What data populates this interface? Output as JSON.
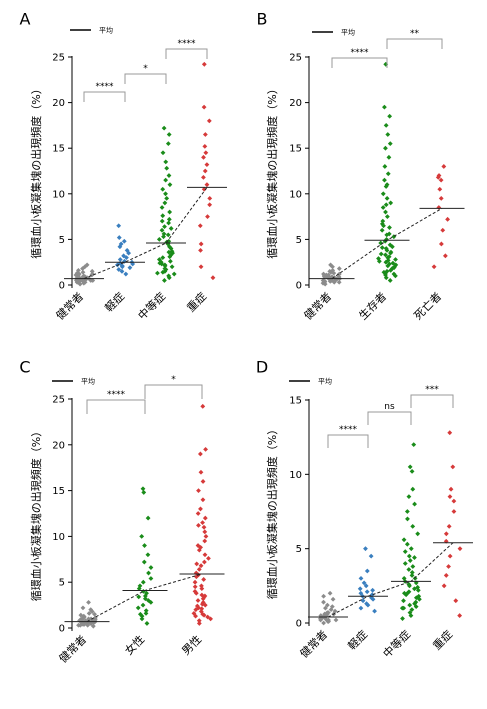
{
  "legend_label": "平均",
  "colors": {
    "健常者": "#8c8c8c",
    "軽症": "#3a7fbf",
    "中等症": "#1a8c1a",
    "重症": "#d63a3a",
    "生存者": "#1a8c1a",
    "死亡者": "#d63a3a",
    "女性": "#1a8c1a",
    "男性": "#d63a3a"
  },
  "chart_data": [
    {
      "panel": "A",
      "type": "scatter",
      "ylabel": "循環血小板凝集塊の出現頻度（%）",
      "ylim": [
        0,
        25
      ],
      "yticks": [
        0,
        5,
        10,
        15,
        20,
        25
      ],
      "categories": [
        "健常者",
        "軽症",
        "中等症",
        "重症"
      ],
      "means": [
        0.7,
        2.5,
        4.6,
        10.7
      ],
      "significance": [
        {
          "from": 0,
          "to": 1,
          "label": "****"
        },
        {
          "from": 1,
          "to": 2,
          "label": "*"
        },
        {
          "from": 2,
          "to": 3,
          "label": "****"
        }
      ],
      "series": [
        {
          "category": "健常者",
          "values": [
            0.2,
            0.3,
            0.3,
            0.4,
            0.4,
            0.5,
            0.5,
            0.5,
            0.6,
            0.6,
            0.6,
            0.7,
            0.7,
            0.7,
            0.8,
            0.8,
            0.8,
            0.9,
            0.9,
            1.0,
            1.0,
            1.1,
            1.1,
            1.2,
            1.3,
            1.4,
            1.5,
            1.6,
            1.8,
            2.0,
            2.2,
            0.1,
            0.3,
            0.5,
            0.9,
            1.2
          ]
        },
        {
          "category": "軽症",
          "values": [
            1.2,
            1.5,
            1.7,
            1.9,
            2.0,
            2.1,
            2.2,
            2.3,
            2.4,
            2.5,
            2.6,
            2.8,
            3.0,
            3.2,
            3.5,
            3.8,
            4.2,
            4.5,
            4.8,
            5.2,
            6.5
          ]
        },
        {
          "category": "中等症",
          "values": [
            0.5,
            0.8,
            1.0,
            1.2,
            1.4,
            1.5,
            1.7,
            1.8,
            2.0,
            2.1,
            2.2,
            2.3,
            2.5,
            2.6,
            2.8,
            3.0,
            3.1,
            3.3,
            3.5,
            3.7,
            4.0,
            4.2,
            4.5,
            4.7,
            5.0,
            5.3,
            5.6,
            6.0,
            6.4,
            6.8,
            7.2,
            7.6,
            8.0,
            8.5,
            9.0,
            9.5,
            10.0,
            10.5,
            11.0,
            11.5,
            12.0,
            12.8,
            13.5,
            14.5,
            15.5,
            16.5,
            17.2,
            1.3,
            2.4,
            3.6,
            4.8,
            5.5,
            6.2,
            7.0
          ]
        },
        {
          "category": "重症",
          "values": [
            0.8,
            2.0,
            3.8,
            4.5,
            6.5,
            7.5,
            8.8,
            9.5,
            10.5,
            11.0,
            11.8,
            12.5,
            13.2,
            14.0,
            14.5,
            15.2,
            16.5,
            18.0,
            19.5,
            24.2
          ]
        }
      ]
    },
    {
      "panel": "B",
      "type": "scatter",
      "ylabel": "循環血小板凝集塊の出現頻度（%）",
      "ylim": [
        0,
        25
      ],
      "yticks": [
        0,
        5,
        10,
        15,
        20,
        25
      ],
      "categories": [
        "健常者",
        "生存者",
        "死亡者"
      ],
      "means": [
        0.7,
        4.9,
        8.4
      ],
      "significance": [
        {
          "from": 0,
          "to": 1,
          "label": "****"
        },
        {
          "from": 1,
          "to": 2,
          "label": "**"
        }
      ],
      "series": [
        {
          "category": "健常者",
          "values": [
            0.2,
            0.3,
            0.3,
            0.4,
            0.4,
            0.5,
            0.5,
            0.5,
            0.6,
            0.6,
            0.6,
            0.7,
            0.7,
            0.7,
            0.8,
            0.8,
            0.8,
            0.9,
            0.9,
            1.0,
            1.0,
            1.1,
            1.1,
            1.2,
            1.3,
            1.4,
            1.5,
            1.6,
            1.8,
            2.0,
            2.2,
            0.1,
            0.3,
            0.5,
            0.9,
            1.2
          ]
        },
        {
          "category": "生存者",
          "values": [
            0.5,
            0.8,
            1.0,
            1.2,
            1.3,
            1.5,
            1.6,
            1.8,
            2.0,
            2.1,
            2.2,
            2.3,
            2.4,
            2.5,
            2.6,
            2.8,
            3.0,
            3.1,
            3.3,
            3.5,
            3.6,
            3.8,
            4.0,
            4.2,
            4.4,
            4.6,
            4.8,
            5.0,
            5.3,
            5.6,
            6.0,
            6.3,
            6.7,
            7.0,
            7.5,
            8.0,
            8.5,
            9.0,
            9.5,
            10.0,
            10.8,
            11.5,
            12.2,
            13.0,
            14.0,
            15.0,
            15.5,
            16.5,
            17.5,
            18.5,
            19.5,
            24.2,
            1.1,
            1.9,
            2.7,
            3.4,
            4.1,
            5.5,
            6.5,
            8.8,
            11.0,
            1.4,
            2.9
          ]
        },
        {
          "category": "死亡者",
          "values": [
            2.0,
            3.2,
            4.5,
            6.0,
            7.2,
            8.5,
            9.5,
            10.5,
            11.5,
            11.8,
            12.0,
            13.0
          ]
        }
      ]
    },
    {
      "panel": "C",
      "type": "scatter",
      "ylabel": "循環血小板凝集塊の出現頻度（%）",
      "ylim": [
        0,
        25
      ],
      "yticks": [
        0,
        5,
        10,
        15,
        20,
        25
      ],
      "categories": [
        "健常者",
        "女性",
        "男性"
      ],
      "means": [
        0.7,
        4.1,
        5.9
      ],
      "significance": [
        {
          "from": 0,
          "to": 1,
          "label": "****"
        },
        {
          "from": 1,
          "to": 2,
          "label": "*"
        }
      ],
      "series": [
        {
          "category": "健常者",
          "values": [
            0.2,
            0.3,
            0.3,
            0.4,
            0.4,
            0.5,
            0.5,
            0.5,
            0.6,
            0.6,
            0.6,
            0.7,
            0.7,
            0.7,
            0.8,
            0.8,
            0.8,
            0.9,
            0.9,
            1.0,
            1.0,
            1.1,
            1.1,
            1.2,
            1.3,
            1.4,
            1.5,
            1.6,
            1.8,
            2.0,
            2.2,
            2.8,
            0.3,
            0.5,
            0.9
          ]
        },
        {
          "category": "女性",
          "values": [
            0.5,
            1.0,
            1.3,
            1.6,
            1.9,
            2.2,
            2.5,
            2.8,
            3.0,
            3.2,
            3.5,
            3.8,
            4.0,
            4.3,
            4.6,
            5.0,
            5.4,
            6.0,
            6.6,
            7.2,
            8.0,
            9.0,
            10.0,
            12.0,
            14.8,
            15.2,
            1.5,
            3.4
          ]
        },
        {
          "category": "男性",
          "values": [
            0.5,
            0.8,
            1.0,
            1.2,
            1.4,
            1.5,
            1.6,
            1.8,
            2.0,
            2.1,
            2.2,
            2.4,
            2.6,
            2.8,
            3.0,
            3.2,
            3.4,
            3.6,
            3.8,
            4.0,
            4.3,
            4.6,
            5.0,
            5.3,
            5.6,
            6.0,
            6.4,
            6.8,
            7.2,
            7.6,
            8.0,
            8.5,
            9.0,
            9.5,
            10.0,
            10.5,
            11.0,
            11.5,
            12.0,
            12.5,
            13.0,
            14.0,
            15.0,
            16.0,
            17.0,
            19.0,
            19.5,
            24.2,
            1.3,
            2.5,
            3.5,
            4.5,
            5.8,
            7.0,
            8.8,
            11.2
          ]
        }
      ]
    },
    {
      "panel": "D",
      "type": "scatter",
      "ylabel": "循環血小板凝集塊の出現頻度（%）",
      "ylim": [
        0,
        15
      ],
      "yticks": [
        0,
        5,
        10,
        15
      ],
      "categories": [
        "健常者",
        "軽症",
        "中等症",
        "重症"
      ],
      "means": [
        0.4,
        1.8,
        2.8,
        5.4
      ],
      "significance": [
        {
          "from": 0,
          "to": 1,
          "label": "****"
        },
        {
          "from": 1,
          "to": 2,
          "label": "ns"
        },
        {
          "from": 2,
          "to": 3,
          "label": "***"
        }
      ],
      "series": [
        {
          "category": "健常者",
          "values": [
            0.0,
            0.1,
            0.1,
            0.2,
            0.2,
            0.2,
            0.3,
            0.3,
            0.3,
            0.4,
            0.4,
            0.4,
            0.5,
            0.5,
            0.5,
            0.6,
            0.6,
            0.7,
            0.7,
            0.8,
            0.9,
            1.0,
            1.1,
            1.2,
            1.4,
            1.6,
            1.8,
            2.0,
            0.2,
            0.6
          ]
        },
        {
          "category": "軽症",
          "values": [
            0.8,
            1.0,
            1.2,
            1.3,
            1.5,
            1.6,
            1.7,
            1.8,
            1.9,
            2.0,
            2.1,
            2.2,
            2.3,
            2.5,
            2.7,
            3.0,
            3.5,
            4.5,
            5.0
          ]
        },
        {
          "category": "中等症",
          "values": [
            0.3,
            0.5,
            0.7,
            0.9,
            1.0,
            1.1,
            1.2,
            1.3,
            1.4,
            1.5,
            1.6,
            1.7,
            1.8,
            1.9,
            2.0,
            2.1,
            2.2,
            2.3,
            2.4,
            2.5,
            2.6,
            2.7,
            2.8,
            3.0,
            3.2,
            3.4,
            3.6,
            3.8,
            4.0,
            4.2,
            4.5,
            4.8,
            5.0,
            5.3,
            5.6,
            6.0,
            6.5,
            7.0,
            7.5,
            8.0,
            8.5,
            9.0,
            10.2,
            10.5,
            12.0,
            1.0,
            2.0,
            3.0,
            4.4
          ]
        },
        {
          "category": "重症",
          "values": [
            0.5,
            1.5,
            2.5,
            3.2,
            3.8,
            4.5,
            5.0,
            5.5,
            6.0,
            6.5,
            7.5,
            8.2,
            8.5,
            9.0,
            10.5,
            12.8
          ]
        }
      ]
    }
  ]
}
